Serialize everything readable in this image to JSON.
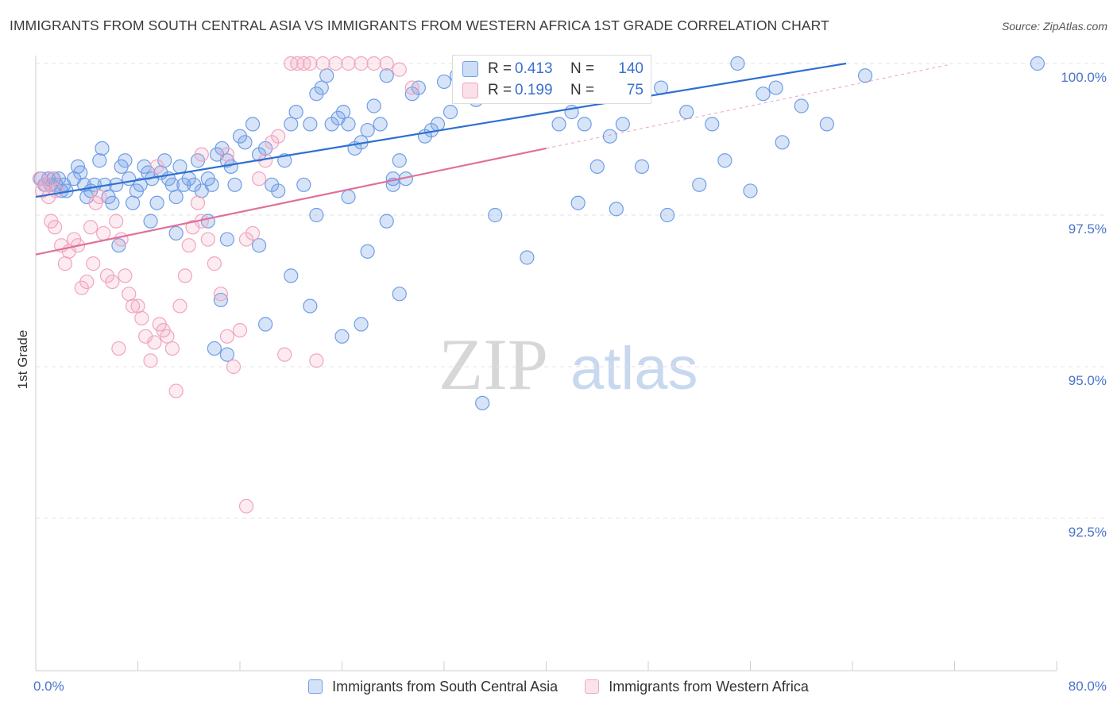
{
  "header": {
    "title": "IMMIGRANTS FROM SOUTH CENTRAL ASIA VS IMMIGRANTS FROM WESTERN AFRICA 1ST GRADE CORRELATION CHART",
    "source": "Source: ZipAtlas.com"
  },
  "watermark": {
    "part1": "ZIP",
    "part2": "atlas"
  },
  "stats": [
    {
      "r_label": "R =",
      "r_value": "0.413",
      "n_label": "N =",
      "n_value": "140",
      "color": "#6f9ee6"
    },
    {
      "r_label": "R =",
      "r_value": "0.199",
      "n_label": "N =",
      "n_value": "75",
      "color": "#f0a5bf"
    }
  ],
  "legend": [
    {
      "label": "Immigrants from South Central Asia",
      "color": "#6f9ee6"
    },
    {
      "label": "Immigrants from Western Africa",
      "color": "#f0a5bf"
    }
  ],
  "chart_data": {
    "type": "scatter",
    "title": "IMMIGRANTS FROM SOUTH CENTRAL ASIA VS IMMIGRANTS FROM WESTERN AFRICA 1ST GRADE CORRELATION CHART",
    "xlabel": "",
    "ylabel": "1st Grade",
    "xlim": [
      0,
      80
    ],
    "ylim": [
      90.0,
      100.2
    ],
    "x_tick_labels": [
      "0.0%",
      "80.0%"
    ],
    "y_ticks": [
      92.5,
      95.0,
      97.5,
      100.0
    ],
    "y_tick_labels": [
      "92.5%",
      "95.0%",
      "97.5%",
      "100.0%"
    ],
    "grid": true,
    "colors": {
      "blue": "#6f9ee6",
      "blue_line": "#2f6fd0",
      "pink": "#f0a5bf",
      "pink_line": "#e0709a"
    },
    "series": [
      {
        "name": "Immigrants from South Central Asia",
        "color": "#6f9ee6",
        "trend": {
          "x0": 0,
          "y0": 97.8,
          "x1": 63.5,
          "y1": 100.0,
          "dashed_to_x": null
        },
        "points": [
          [
            0.4,
            98.1
          ],
          [
            0.7,
            98.0
          ],
          [
            1.0,
            98.1
          ],
          [
            1.2,
            98.0
          ],
          [
            1.4,
            98.1
          ],
          [
            1.6,
            98.0
          ],
          [
            1.8,
            98.1
          ],
          [
            2.0,
            97.9
          ],
          [
            2.2,
            98.0
          ],
          [
            2.4,
            97.9
          ],
          [
            3.0,
            98.1
          ],
          [
            3.3,
            98.3
          ],
          [
            3.5,
            98.2
          ],
          [
            3.8,
            98.0
          ],
          [
            4.0,
            97.8
          ],
          [
            4.3,
            97.9
          ],
          [
            4.6,
            98.0
          ],
          [
            5.0,
            98.4
          ],
          [
            5.2,
            98.6
          ],
          [
            5.4,
            98.0
          ],
          [
            5.7,
            97.8
          ],
          [
            6.0,
            97.7
          ],
          [
            6.3,
            98.0
          ],
          [
            6.7,
            98.3
          ],
          [
            7.0,
            98.4
          ],
          [
            7.3,
            98.1
          ],
          [
            7.6,
            97.7
          ],
          [
            7.9,
            97.9
          ],
          [
            8.2,
            98.0
          ],
          [
            8.5,
            98.3
          ],
          [
            8.8,
            98.2
          ],
          [
            9.1,
            98.1
          ],
          [
            9.5,
            97.7
          ],
          [
            9.8,
            98.2
          ],
          [
            10.1,
            98.4
          ],
          [
            10.4,
            98.1
          ],
          [
            10.7,
            98.0
          ],
          [
            11.0,
            97.8
          ],
          [
            11.3,
            98.3
          ],
          [
            11.6,
            98.0
          ],
          [
            12.0,
            98.1
          ],
          [
            12.4,
            98.0
          ],
          [
            12.7,
            98.4
          ],
          [
            13.0,
            97.9
          ],
          [
            13.5,
            98.1
          ],
          [
            13.8,
            98.0
          ],
          [
            14.2,
            98.5
          ],
          [
            14.6,
            98.6
          ],
          [
            15.0,
            98.4
          ],
          [
            15.3,
            98.3
          ],
          [
            15.6,
            98.0
          ],
          [
            16.0,
            98.8
          ],
          [
            16.4,
            98.7
          ],
          [
            17.0,
            99.0
          ],
          [
            17.5,
            98.5
          ],
          [
            18.0,
            98.6
          ],
          [
            18.5,
            98.0
          ],
          [
            19.0,
            97.9
          ],
          [
            19.5,
            98.4
          ],
          [
            20.0,
            99.0
          ],
          [
            20.4,
            99.2
          ],
          [
            21.0,
            98.0
          ],
          [
            21.5,
            99.0
          ],
          [
            22.0,
            99.5
          ],
          [
            22.4,
            99.6
          ],
          [
            22.8,
            99.8
          ],
          [
            23.2,
            99.0
          ],
          [
            23.7,
            99.1
          ],
          [
            24.1,
            99.2
          ],
          [
            24.5,
            99.0
          ],
          [
            25.0,
            98.6
          ],
          [
            25.5,
            98.7
          ],
          [
            26.0,
            98.9
          ],
          [
            26.5,
            99.3
          ],
          [
            27.0,
            99.0
          ],
          [
            27.5,
            99.8
          ],
          [
            28.0,
            98.0
          ],
          [
            28.5,
            98.4
          ],
          [
            29.0,
            98.1
          ],
          [
            29.5,
            99.5
          ],
          [
            30.0,
            99.6
          ],
          [
            30.5,
            98.8
          ],
          [
            31.0,
            98.9
          ],
          [
            31.5,
            99.0
          ],
          [
            32.0,
            99.7
          ],
          [
            32.5,
            99.2
          ],
          [
            33.0,
            99.8
          ],
          [
            33.5,
            99.5
          ],
          [
            34.0,
            100.0
          ],
          [
            34.5,
            99.4
          ],
          [
            35.0,
            100.0
          ],
          [
            35.5,
            100.0
          ],
          [
            36.0,
            100.0
          ],
          [
            36.5,
            100.0
          ],
          [
            37.0,
            100.0
          ],
          [
            37.5,
            99.6
          ],
          [
            38.0,
            100.0
          ],
          [
            38.5,
            99.8
          ],
          [
            39.0,
            100.0
          ],
          [
            39.5,
            99.7
          ],
          [
            40.0,
            99.5
          ],
          [
            40.5,
            99.6
          ],
          [
            41.0,
            99.0
          ],
          [
            42.0,
            99.2
          ],
          [
            43.0,
            99.0
          ],
          [
            44.0,
            98.3
          ],
          [
            45.0,
            98.8
          ],
          [
            46.0,
            99.0
          ],
          [
            47.0,
            99.5
          ],
          [
            49.0,
            99.6
          ],
          [
            51.0,
            99.2
          ],
          [
            53.0,
            99.0
          ],
          [
            55.0,
            100.0
          ],
          [
            57.0,
            99.5
          ],
          [
            58.0,
            99.6
          ],
          [
            60.0,
            99.3
          ],
          [
            62.0,
            99.0
          ],
          [
            65.0,
            99.8
          ],
          [
            78.5,
            100.0
          ],
          [
            9.0,
            97.4
          ],
          [
            11.0,
            97.2
          ],
          [
            13.5,
            97.4
          ],
          [
            15.0,
            97.1
          ],
          [
            17.5,
            97.0
          ],
          [
            20.0,
            96.5
          ],
          [
            22.0,
            97.5
          ],
          [
            24.5,
            97.8
          ],
          [
            26.0,
            96.9
          ],
          [
            27.5,
            97.4
          ],
          [
            6.5,
            97.0
          ],
          [
            14.5,
            96.1
          ],
          [
            18.0,
            95.7
          ],
          [
            21.5,
            96.0
          ],
          [
            24.0,
            95.5
          ],
          [
            25.5,
            95.7
          ],
          [
            28.5,
            96.2
          ],
          [
            14.0,
            95.3
          ],
          [
            15.0,
            95.2
          ],
          [
            28.0,
            98.1
          ],
          [
            35.0,
            94.4
          ],
          [
            36.0,
            97.5
          ],
          [
            38.5,
            96.8
          ],
          [
            42.5,
            97.7
          ],
          [
            45.5,
            97.6
          ],
          [
            47.5,
            98.3
          ],
          [
            49.5,
            97.5
          ],
          [
            52.0,
            98.0
          ],
          [
            54.0,
            98.4
          ],
          [
            56.0,
            97.9
          ],
          [
            58.5,
            98.7
          ]
        ]
      },
      {
        "name": "Immigrants from Western Africa",
        "color": "#f0a5bf",
        "trend": {
          "x0": 0,
          "y0": 96.85,
          "x1": 40.0,
          "y1": 98.6,
          "dashed_to_x": 71.5
        },
        "points": [
          [
            0.3,
            98.1
          ],
          [
            0.5,
            97.9
          ],
          [
            0.8,
            98.0
          ],
          [
            1.0,
            97.8
          ],
          [
            1.3,
            98.1
          ],
          [
            1.6,
            97.9
          ],
          [
            1.2,
            97.4
          ],
          [
            1.5,
            97.3
          ],
          [
            2.0,
            97.0
          ],
          [
            2.3,
            96.7
          ],
          [
            2.6,
            96.9
          ],
          [
            3.0,
            97.1
          ],
          [
            3.3,
            97.0
          ],
          [
            3.6,
            96.3
          ],
          [
            4.0,
            96.4
          ],
          [
            4.3,
            97.3
          ],
          [
            4.7,
            97.7
          ],
          [
            5.0,
            97.8
          ],
          [
            5.3,
            97.2
          ],
          [
            5.6,
            96.5
          ],
          [
            6.0,
            96.4
          ],
          [
            6.3,
            97.4
          ],
          [
            6.7,
            97.1
          ],
          [
            7.0,
            96.5
          ],
          [
            7.3,
            96.2
          ],
          [
            7.6,
            96.0
          ],
          [
            8.0,
            96.0
          ],
          [
            8.3,
            95.8
          ],
          [
            8.6,
            95.5
          ],
          [
            9.0,
            95.1
          ],
          [
            9.3,
            95.4
          ],
          [
            9.7,
            95.7
          ],
          [
            10.0,
            95.6
          ],
          [
            10.3,
            95.5
          ],
          [
            10.7,
            95.3
          ],
          [
            11.0,
            94.6
          ],
          [
            11.3,
            96.0
          ],
          [
            11.7,
            96.5
          ],
          [
            12.0,
            97.0
          ],
          [
            12.3,
            97.3
          ],
          [
            12.7,
            97.7
          ],
          [
            13.0,
            97.4
          ],
          [
            13.5,
            97.1
          ],
          [
            14.0,
            96.7
          ],
          [
            14.5,
            96.2
          ],
          [
            15.0,
            95.5
          ],
          [
            15.5,
            95.0
          ],
          [
            16.0,
            95.6
          ],
          [
            16.5,
            97.1
          ],
          [
            17.0,
            97.2
          ],
          [
            17.5,
            98.1
          ],
          [
            18.0,
            98.4
          ],
          [
            18.5,
            98.7
          ],
          [
            19.0,
            98.8
          ],
          [
            20.0,
            100.0
          ],
          [
            20.5,
            100.0
          ],
          [
            21.0,
            100.0
          ],
          [
            21.5,
            100.0
          ],
          [
            22.5,
            100.0
          ],
          [
            23.5,
            100.0
          ],
          [
            24.5,
            100.0
          ],
          [
            25.5,
            100.0
          ],
          [
            26.5,
            100.0
          ],
          [
            27.5,
            100.0
          ],
          [
            28.5,
            99.9
          ],
          [
            29.5,
            99.6
          ],
          [
            4.5,
            96.7
          ],
          [
            6.5,
            95.3
          ],
          [
            9.5,
            98.3
          ],
          [
            13.0,
            98.5
          ],
          [
            15.0,
            98.5
          ],
          [
            16.5,
            92.7
          ],
          [
            19.5,
            95.2
          ],
          [
            22.0,
            95.1
          ],
          [
            35.5,
            99.5
          ]
        ]
      }
    ]
  }
}
